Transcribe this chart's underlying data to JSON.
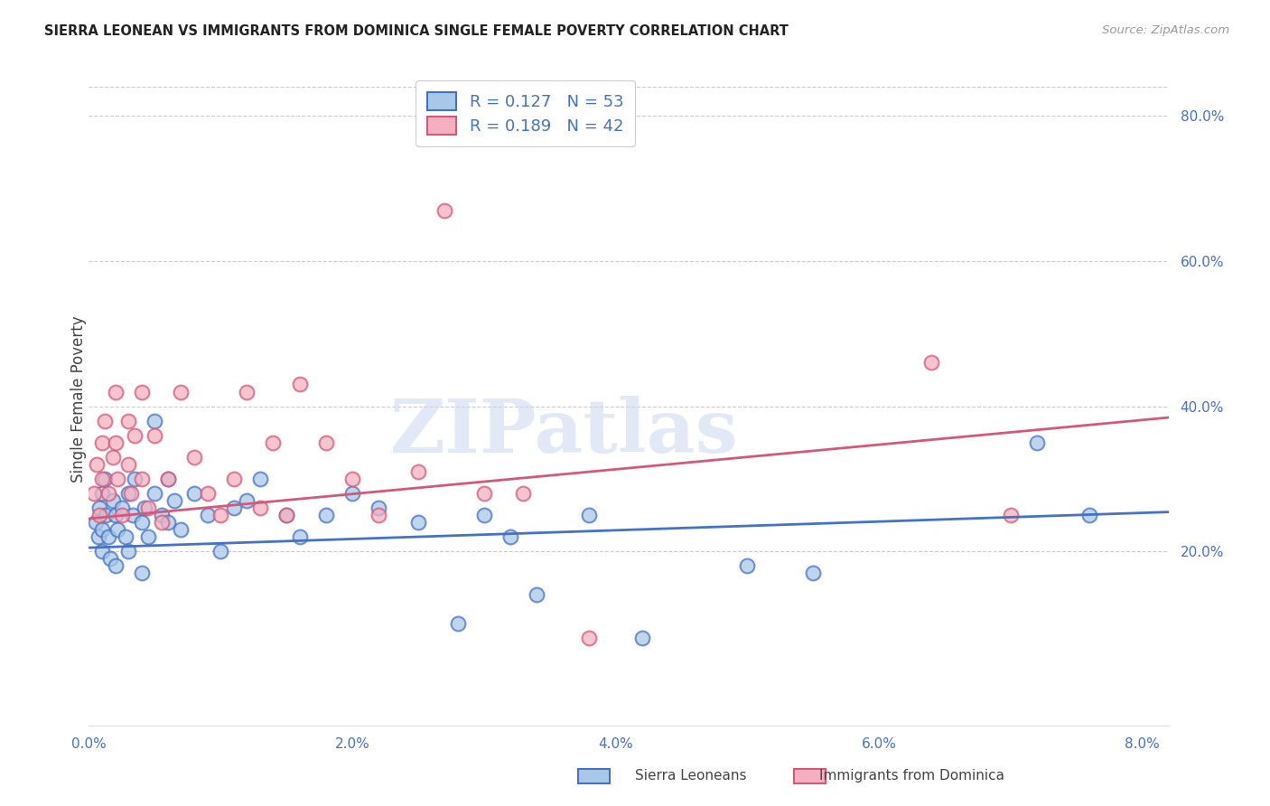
{
  "title": "SIERRA LEONEAN VS IMMIGRANTS FROM DOMINICA SINGLE FEMALE POVERTY CORRELATION CHART",
  "source": "Source: ZipAtlas.com",
  "ylabel": "Single Female Poverty",
  "xlim": [
    0.0,
    0.082
  ],
  "ylim": [
    -0.04,
    0.86
  ],
  "y_ticks": [
    0.2,
    0.4,
    0.6,
    0.8
  ],
  "y_tick_labels": [
    "20.0%",
    "40.0%",
    "60.0%",
    "80.0%"
  ],
  "x_ticks": [
    0.0,
    0.02,
    0.04,
    0.06,
    0.08
  ],
  "x_tick_labels": [
    "0.0%",
    "2.0%",
    "4.0%",
    "6.0%",
    "8.0%"
  ],
  "sierra_r": 0.127,
  "sierra_n": 53,
  "dominica_r": 0.189,
  "dominica_n": 42,
  "sierra_face_color": "#a8c8e8",
  "sierra_edge_color": "#4472c4",
  "dominica_face_color": "#f4b0c0",
  "dominica_edge_color": "#d45878",
  "sierra_line_color": "#4472c4",
  "dominica_line_color": "#d45878",
  "watermark_text": "ZIPatlas",
  "legend_label_sierra": "Sierra Leoneans",
  "legend_label_dominica": "Immigrants from Dominica",
  "sierra_x": [
    0.0005,
    0.0007,
    0.0008,
    0.001,
    0.001,
    0.001,
    0.0012,
    0.0013,
    0.0015,
    0.0016,
    0.0018,
    0.002,
    0.002,
    0.0022,
    0.0025,
    0.0028,
    0.003,
    0.003,
    0.0033,
    0.0035,
    0.004,
    0.004,
    0.0042,
    0.0045,
    0.005,
    0.005,
    0.0055,
    0.006,
    0.006,
    0.0065,
    0.007,
    0.008,
    0.009,
    0.01,
    0.011,
    0.012,
    0.013,
    0.015,
    0.016,
    0.018,
    0.02,
    0.022,
    0.025,
    0.028,
    0.03,
    0.032,
    0.034,
    0.038,
    0.042,
    0.05,
    0.055,
    0.072,
    0.076
  ],
  "sierra_y": [
    0.24,
    0.22,
    0.26,
    0.28,
    0.23,
    0.2,
    0.3,
    0.25,
    0.22,
    0.19,
    0.27,
    0.25,
    0.18,
    0.23,
    0.26,
    0.22,
    0.28,
    0.2,
    0.25,
    0.3,
    0.24,
    0.17,
    0.26,
    0.22,
    0.38,
    0.28,
    0.25,
    0.3,
    0.24,
    0.27,
    0.23,
    0.28,
    0.25,
    0.2,
    0.26,
    0.27,
    0.3,
    0.25,
    0.22,
    0.25,
    0.28,
    0.26,
    0.24,
    0.1,
    0.25,
    0.22,
    0.14,
    0.25,
    0.08,
    0.18,
    0.17,
    0.35,
    0.25
  ],
  "dominica_x": [
    0.0004,
    0.0006,
    0.0008,
    0.001,
    0.001,
    0.0012,
    0.0015,
    0.0018,
    0.002,
    0.002,
    0.0022,
    0.0025,
    0.003,
    0.003,
    0.0032,
    0.0035,
    0.004,
    0.004,
    0.0045,
    0.005,
    0.0055,
    0.006,
    0.007,
    0.008,
    0.009,
    0.01,
    0.011,
    0.012,
    0.013,
    0.014,
    0.015,
    0.016,
    0.018,
    0.02,
    0.022,
    0.025,
    0.027,
    0.03,
    0.033,
    0.038,
    0.064,
    0.07
  ],
  "dominica_y": [
    0.28,
    0.32,
    0.25,
    0.35,
    0.3,
    0.38,
    0.28,
    0.33,
    0.42,
    0.35,
    0.3,
    0.25,
    0.38,
    0.32,
    0.28,
    0.36,
    0.42,
    0.3,
    0.26,
    0.36,
    0.24,
    0.3,
    0.42,
    0.33,
    0.28,
    0.25,
    0.3,
    0.42,
    0.26,
    0.35,
    0.25,
    0.43,
    0.35,
    0.3,
    0.25,
    0.31,
    0.67,
    0.28,
    0.28,
    0.08,
    0.46,
    0.25
  ]
}
